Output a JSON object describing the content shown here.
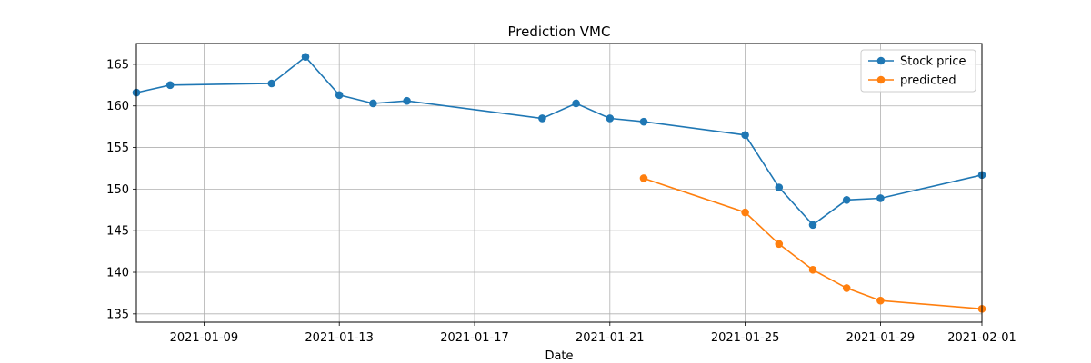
{
  "chart_data": {
    "type": "line",
    "title": "Prediction VMC",
    "xlabel": "Date",
    "ylabel": "",
    "xlim": [
      "2021-01-07",
      "2021-02-01"
    ],
    "ylim": [
      134,
      167.5
    ],
    "x_ticks": [
      "2021-01-09",
      "2021-01-13",
      "2021-01-17",
      "2021-01-21",
      "2021-01-25",
      "2021-01-29",
      "2021-02-01"
    ],
    "y_ticks": [
      135,
      140,
      145,
      150,
      155,
      160,
      165
    ],
    "grid": true,
    "legend_position": "top-right",
    "series": [
      {
        "name": "Stock price",
        "color": "#1f77b4",
        "points": [
          {
            "x": "2021-01-07",
            "y": 161.6
          },
          {
            "x": "2021-01-08",
            "y": 162.5
          },
          {
            "x": "2021-01-11",
            "y": 162.7
          },
          {
            "x": "2021-01-12",
            "y": 165.9
          },
          {
            "x": "2021-01-13",
            "y": 161.3
          },
          {
            "x": "2021-01-14",
            "y": 160.3
          },
          {
            "x": "2021-01-15",
            "y": 160.6
          },
          {
            "x": "2021-01-19",
            "y": 158.5
          },
          {
            "x": "2021-01-20",
            "y": 160.3
          },
          {
            "x": "2021-01-21",
            "y": 158.5
          },
          {
            "x": "2021-01-22",
            "y": 158.1
          },
          {
            "x": "2021-01-25",
            "y": 156.5
          },
          {
            "x": "2021-01-26",
            "y": 150.2
          },
          {
            "x": "2021-01-27",
            "y": 145.7
          },
          {
            "x": "2021-01-28",
            "y": 148.7
          },
          {
            "x": "2021-01-29",
            "y": 148.9
          },
          {
            "x": "2021-02-01",
            "y": 151.7
          }
        ]
      },
      {
        "name": "predicted",
        "color": "#ff7f0e",
        "points": [
          {
            "x": "2021-01-22",
            "y": 151.3
          },
          {
            "x": "2021-01-25",
            "y": 147.2
          },
          {
            "x": "2021-01-26",
            "y": 143.4
          },
          {
            "x": "2021-01-27",
            "y": 140.3
          },
          {
            "x": "2021-01-28",
            "y": 138.1
          },
          {
            "x": "2021-01-29",
            "y": 136.6
          },
          {
            "x": "2021-02-01",
            "y": 135.6
          }
        ]
      }
    ]
  }
}
